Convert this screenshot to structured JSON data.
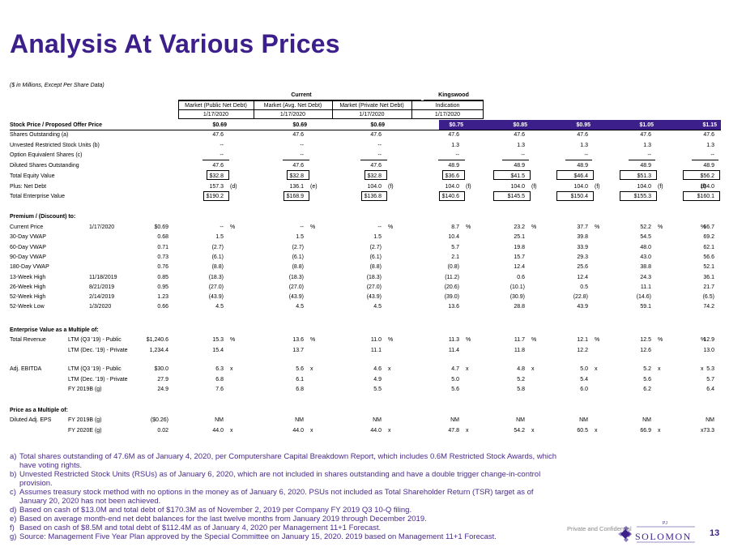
{
  "title": "Analysis At Various Prices",
  "subtitle": "($ in Millions, Except Per Share Data)",
  "header": {
    "current_label": "Current",
    "kingswood_label": "Kingswood",
    "columns": [
      "Market (Public Net Debt)",
      "Market (Avg. Net Debt)",
      "Market (Private Net Debt)",
      "Indication"
    ],
    "dates": [
      "1/17/2020",
      "1/17/2020",
      "1/17/2020",
      "1/17/2020"
    ]
  },
  "offer_row": {
    "label": "Stock Price / Proposed Offer Price",
    "values": [
      "$0.69",
      "$0.69",
      "$0.69",
      "$0.75",
      "$0.85",
      "$0.95",
      "$1.05",
      "$1.15"
    ]
  },
  "equity_rows": [
    {
      "label": "Shares Outstanding (a)",
      "values": [
        "47.6",
        "47.6",
        "47.6",
        "47.6",
        "47.6",
        "47.6",
        "47.6",
        "47.6"
      ]
    },
    {
      "label": "Unvested Restricted Stock Units (b)",
      "values": [
        "--",
        "--",
        "--",
        "1.3",
        "1.3",
        "1.3",
        "1.3",
        "1.3"
      ]
    },
    {
      "label": "Option Equivalent Shares (c)",
      "values": [
        "--",
        "--",
        "--",
        "--",
        "--",
        "--",
        "--",
        "--"
      ]
    },
    {
      "label": "Diluted Shares Outstanding",
      "values": [
        "47.6",
        "47.6",
        "47.6",
        "48.9",
        "48.9",
        "48.9",
        "48.9",
        "48.9"
      ]
    },
    {
      "label": "Total Equity Value",
      "values": [
        "$32.8",
        "$32.8",
        "$32.8",
        "$36.6",
        "$41.5",
        "$46.4",
        "$51.3",
        "$56.2"
      ]
    },
    {
      "label": "Plus: Net Debt",
      "values": [
        "157.3",
        "136.1",
        "104.0",
        "104.0",
        "104.0",
        "104.0",
        "104.0",
        "104.0"
      ],
      "suffixes": [
        "(d)",
        "(e)",
        "(f)",
        "(f)",
        "(f)",
        "(f)",
        "(f)",
        "(f)"
      ]
    },
    {
      "label": "Total Enterprise Value",
      "values": [
        "$190.2",
        "$168.9",
        "$136.8",
        "$140.6",
        "$145.5",
        "$150.4",
        "$155.3",
        "$160.1"
      ]
    }
  ],
  "premium": {
    "heading": "Premium / (Discount) to:",
    "rows": [
      {
        "label": "Current Price",
        "date": "1/17/2020",
        "price": "$0.69",
        "values": [
          "--",
          "--",
          "--",
          "8.7",
          "23.2",
          "37.7",
          "52.2",
          "66.7"
        ]
      },
      {
        "label": "30-Day VWAP",
        "date": "",
        "price": "0.68",
        "values": [
          "1.5",
          "1.5",
          "1.5",
          "10.4",
          "25.1",
          "39.8",
          "54.5",
          "69.2"
        ]
      },
      {
        "label": "60-Day VWAP",
        "date": "",
        "price": "0.71",
        "values": [
          "(2.7)",
          "(2.7)",
          "(2.7)",
          "5.7",
          "19.8",
          "33.9",
          "48.0",
          "62.1"
        ]
      },
      {
        "label": "90-Day VWAP",
        "date": "",
        "price": "0.73",
        "values": [
          "(6.1)",
          "(6.1)",
          "(6.1)",
          "2.1",
          "15.7",
          "29.3",
          "43.0",
          "56.6"
        ]
      },
      {
        "label": "180-Day VWAP",
        "date": "",
        "price": "0.76",
        "values": [
          "(8.8)",
          "(8.8)",
          "(8.8)",
          "(0.8)",
          "12.4",
          "25.6",
          "38.8",
          "52.1"
        ]
      },
      {
        "label": "13-Week High",
        "date": "11/18/2019",
        "price": "0.85",
        "values": [
          "(18.3)",
          "(18.3)",
          "(18.3)",
          "(11.2)",
          "0.6",
          "12.4",
          "24.3",
          "36.1"
        ]
      },
      {
        "label": "26-Week High",
        "date": "8/21/2019",
        "price": "0.95",
        "values": [
          "(27.0)",
          "(27.0)",
          "(27.0)",
          "(20.6)",
          "(10.1)",
          "0.5",
          "11.1",
          "21.7"
        ]
      },
      {
        "label": "52-Week High",
        "date": "2/14/2019",
        "price": "1.23",
        "values": [
          "(43.9)",
          "(43.9)",
          "(43.9)",
          "(39.0)",
          "(30.9)",
          "(22.8)",
          "(14.6)",
          "(6.5)"
        ]
      },
      {
        "label": "52-Week Low",
        "date": "1/3/2020",
        "price": "0.66",
        "values": [
          "4.5",
          "4.5",
          "4.5",
          "13.6",
          "28.8",
          "43.9",
          "59.1",
          "74.2"
        ]
      }
    ],
    "unit": "%"
  },
  "ev_multiple": {
    "heading": "Enterprise Value as a Multiple of:",
    "groups": [
      {
        "label": "Total Revenue",
        "unit": "%",
        "rows": [
          {
            "period": "LTM (Q3 '19) - Public",
            "metric": "$1,240.6",
            "values": [
              "15.3",
              "13.6",
              "11.0",
              "11.3",
              "11.7",
              "12.1",
              "12.5",
              "12.9"
            ]
          },
          {
            "period": "LTM (Dec. '19) - Private",
            "metric": "1,234.4",
            "values": [
              "15.4",
              "13.7",
              "11.1",
              "11.4",
              "11.8",
              "12.2",
              "12.6",
              "13.0"
            ]
          }
        ]
      },
      {
        "label": "Adj. EBITDA",
        "unit": "x",
        "rows": [
          {
            "period": "LTM (Q3 '19) - Public",
            "metric": "$30.0",
            "values": [
              "6.3",
              "5.6",
              "4.6",
              "4.7",
              "4.8",
              "5.0",
              "5.2",
              "5.3"
            ]
          },
          {
            "period": "LTM (Dec. '19) - Private",
            "metric": "27.9",
            "values": [
              "6.8",
              "6.1",
              "4.9",
              "5.0",
              "5.2",
              "5.4",
              "5.6",
              "5.7"
            ]
          },
          {
            "period": "FY 2019B (g)",
            "metric": "24.9",
            "values": [
              "7.6",
              "6.8",
              "5.5",
              "5.6",
              "5.8",
              "6.0",
              "6.2",
              "6.4"
            ]
          }
        ]
      }
    ]
  },
  "price_multiple": {
    "heading": "Price as a Multiple of:",
    "label": "Diluted Adj. EPS",
    "rows": [
      {
        "period": "FY 2019B (g)",
        "metric": "($0.26)",
        "values": [
          "NM",
          "NM",
          "NM",
          "NM",
          "NM",
          "NM",
          "NM",
          "NM"
        ]
      },
      {
        "period": "FY 2020E (g)",
        "metric": "0.02",
        "values": [
          "44.0",
          "44.0",
          "44.0",
          "47.8",
          "54.2",
          "60.5",
          "66.9",
          "73.3"
        ]
      }
    ],
    "unit": "x"
  },
  "footnotes": [
    {
      "label": "a)",
      "text": "Total shares outstanding of 47.6M as of January 4, 2020, per Computershare Capital Breakdown Report, which includes 0.6M Restricted Stock Awards, which have voting rights."
    },
    {
      "label": "b)",
      "text": "Unvested Restricted Stock Units (RSUs) as of January 6, 2020, which are not included in shares outstanding and have a double trigger change-in-control provision."
    },
    {
      "label": "c)",
      "text": "Assumes treasury stock method with no options in the money as of January 6, 2020. PSUs not included as Total Shareholder Return (TSR) target as of January 20, 2020 has not been achieved."
    },
    {
      "label": "d)",
      "text": "Based on cash of $13.0M and total debt of $170.3M as of November 2, 2019 per Company FY 2019 Q3 10-Q filing."
    },
    {
      "label": "e)",
      "text": "Based on average month-end net debt balances for the last twelve months from January 2019 through December 2019."
    },
    {
      "label": "f)",
      "text": "Based on cash of $8.5M and total debt of $112.4M as of January 4, 2020 per Management 11+1 Forecast."
    },
    {
      "label": "g)",
      "text": "Source: Management Five Year Plan approved by the Special Committee on January 15, 2020. 2019 based on Management 11+1 Forecast."
    }
  ],
  "footer": {
    "confidential": "Private and Confidential",
    "logo_superscript": "PJ",
    "logo_text": "SOLOMON",
    "page_number": "13"
  },
  "colors": {
    "brand": "#3d1f8c",
    "footnote": "#4a2a8e"
  }
}
